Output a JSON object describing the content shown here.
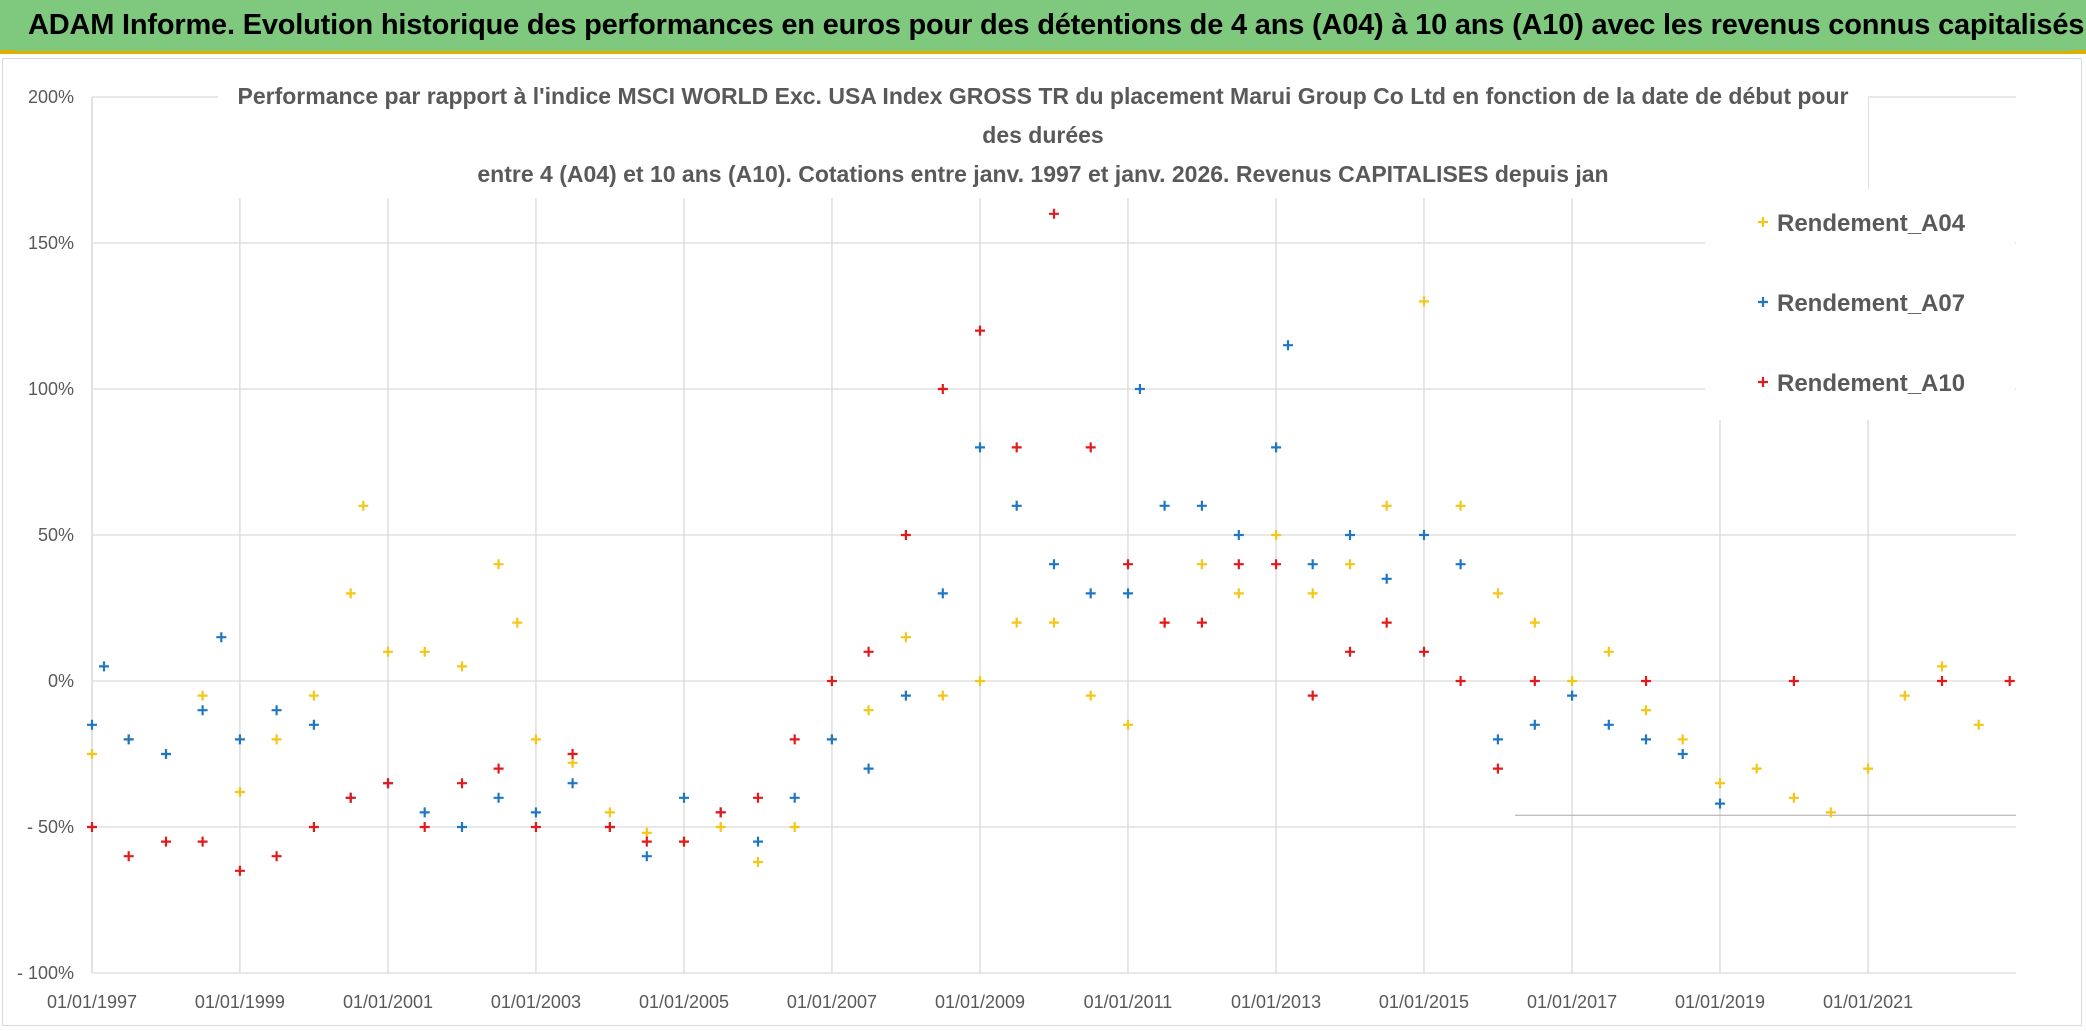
{
  "banner": {
    "title": "ADAM Informe. Evolution historique des performances en euros pour des détentions de 4 ans (A04) à 10 ans (A10) avec les revenus connus capitalisés"
  },
  "chart_data": {
    "type": "scatter",
    "title_lines": [
      "Performance par rapport à l'indice MSCI WORLD Exc. USA Index GROSS TR  du placement Marui Group Co Ltd en fonction de la date de début pour",
      "des durées",
      "entre 4 (A04) et 10 ans (A10). Cotations entre janv. 1997 et janv. 2026. Revenus CAPITALISES depuis jan"
    ],
    "x_axis": {
      "type": "date",
      "range": [
        "1997-01-01",
        "2023-01-01"
      ],
      "tick_labels": [
        "01/01/1997",
        "01/01/1999",
        "01/01/2001",
        "01/01/2003",
        "01/01/2005",
        "01/01/2007",
        "01/01/2009",
        "01/01/2011",
        "01/01/2013",
        "01/01/2015",
        "01/01/2017",
        "01/01/2019",
        "01/01/2021"
      ]
    },
    "y_axis": {
      "range": [
        -100,
        200
      ],
      "unit": "%",
      "tick_values": [
        200,
        150,
        100,
        50,
        0,
        -50,
        -100
      ],
      "tick_labels": [
        "200%",
        "150%",
        "100%",
        "50%",
        "0%",
        "- 50%",
        "- 100%"
      ]
    },
    "grid": true,
    "legend_position": "top-right",
    "marker": "plus",
    "series": [
      {
        "name": "Rendement_A04",
        "color": "#f5c518",
        "points": [
          [
            "1997-01-01",
            -25
          ],
          [
            "1997-07-01",
            -20
          ],
          [
            "1998-01-01",
            -25
          ],
          [
            "1998-07-01",
            -5
          ],
          [
            "1999-01-01",
            -38
          ],
          [
            "1999-07-01",
            -20
          ],
          [
            "2000-01-01",
            -5
          ],
          [
            "2000-07-01",
            30
          ],
          [
            "2000-09-01",
            60
          ],
          [
            "2001-01-01",
            10
          ],
          [
            "2001-07-01",
            10
          ],
          [
            "2002-01-01",
            5
          ],
          [
            "2002-07-01",
            40
          ],
          [
            "2002-10-01",
            20
          ],
          [
            "2003-01-01",
            -20
          ],
          [
            "2003-07-01",
            -28
          ],
          [
            "2004-01-01",
            -45
          ],
          [
            "2004-07-01",
            -52
          ],
          [
            "2005-01-01",
            -55
          ],
          [
            "2005-07-01",
            -50
          ],
          [
            "2006-01-01",
            -62
          ],
          [
            "2006-07-01",
            -50
          ],
          [
            "2007-01-01",
            -20
          ],
          [
            "2007-07-01",
            -10
          ],
          [
            "2008-01-01",
            15
          ],
          [
            "2008-07-01",
            -5
          ],
          [
            "2009-01-01",
            0
          ],
          [
            "2009-07-01",
            20
          ],
          [
            "2010-01-01",
            20
          ],
          [
            "2010-07-01",
            -5
          ],
          [
            "2011-01-01",
            -15
          ],
          [
            "2011-07-01",
            20
          ],
          [
            "2012-01-01",
            40
          ],
          [
            "2012-07-01",
            30
          ],
          [
            "2013-01-01",
            50
          ],
          [
            "2013-07-01",
            30
          ],
          [
            "2014-01-01",
            40
          ],
          [
            "2014-07-01",
            60
          ],
          [
            "2015-01-01",
            130
          ],
          [
            "2015-07-01",
            60
          ],
          [
            "2016-01-01",
            30
          ],
          [
            "2016-07-01",
            20
          ],
          [
            "2017-01-01",
            0
          ],
          [
            "2017-07-01",
            10
          ],
          [
            "2018-01-01",
            -10
          ],
          [
            "2018-07-01",
            -20
          ],
          [
            "2019-01-01",
            -35
          ],
          [
            "2019-07-01",
            -30
          ],
          [
            "2020-01-01",
            -40
          ],
          [
            "2020-07-01",
            -45
          ],
          [
            "2021-01-01",
            -30
          ],
          [
            "2021-07-01",
            -5
          ],
          [
            "2022-01-01",
            5
          ],
          [
            "2022-07-01",
            -15
          ]
        ]
      },
      {
        "name": "Rendement_A07",
        "color": "#1f77c4",
        "points": [
          [
            "1997-01-01",
            -15
          ],
          [
            "1997-03-01",
            5
          ],
          [
            "1997-07-01",
            -20
          ],
          [
            "1998-01-01",
            -25
          ],
          [
            "1998-07-01",
            -10
          ],
          [
            "1998-10-01",
            15
          ],
          [
            "1999-01-01",
            -20
          ],
          [
            "1999-07-01",
            -10
          ],
          [
            "2000-01-01",
            -15
          ],
          [
            "2000-07-01",
            -40
          ],
          [
            "2001-01-01",
            -35
          ],
          [
            "2001-07-01",
            -45
          ],
          [
            "2002-01-01",
            -50
          ],
          [
            "2002-07-01",
            -40
          ],
          [
            "2003-01-01",
            -45
          ],
          [
            "2003-07-01",
            -35
          ],
          [
            "2004-01-01",
            -50
          ],
          [
            "2004-07-01",
            -60
          ],
          [
            "2005-01-01",
            -40
          ],
          [
            "2005-07-01",
            -45
          ],
          [
            "2006-01-01",
            -55
          ],
          [
            "2006-07-01",
            -40
          ],
          [
            "2007-01-01",
            -20
          ],
          [
            "2007-07-01",
            -30
          ],
          [
            "2008-01-01",
            -5
          ],
          [
            "2008-07-01",
            30
          ],
          [
            "2009-01-01",
            80
          ],
          [
            "2009-07-01",
            60
          ],
          [
            "2010-01-01",
            40
          ],
          [
            "2010-07-01",
            30
          ],
          [
            "2011-01-01",
            30
          ],
          [
            "2011-03-01",
            100
          ],
          [
            "2011-07-01",
            60
          ],
          [
            "2012-01-01",
            60
          ],
          [
            "2012-07-01",
            50
          ],
          [
            "2013-01-01",
            80
          ],
          [
            "2013-03-01",
            115
          ],
          [
            "2013-07-01",
            40
          ],
          [
            "2014-01-01",
            50
          ],
          [
            "2014-07-01",
            35
          ],
          [
            "2015-01-01",
            50
          ],
          [
            "2015-07-01",
            40
          ],
          [
            "2016-01-01",
            -20
          ],
          [
            "2016-07-01",
            -15
          ],
          [
            "2017-01-01",
            -5
          ],
          [
            "2017-07-01",
            -15
          ],
          [
            "2018-01-01",
            -20
          ],
          [
            "2018-07-01",
            -25
          ],
          [
            "2019-01-01",
            -42
          ]
        ]
      },
      {
        "name": "Rendement_A10",
        "color": "#e31a1c",
        "points": [
          [
            "1997-01-01",
            -50
          ],
          [
            "1997-07-01",
            -60
          ],
          [
            "1998-01-01",
            -55
          ],
          [
            "1998-07-01",
            -55
          ],
          [
            "1999-01-01",
            -65
          ],
          [
            "1999-07-01",
            -60
          ],
          [
            "2000-01-01",
            -50
          ],
          [
            "2000-07-01",
            -40
          ],
          [
            "2001-01-01",
            -35
          ],
          [
            "2001-07-01",
            -50
          ],
          [
            "2002-01-01",
            -35
          ],
          [
            "2002-07-01",
            -30
          ],
          [
            "2003-01-01",
            -50
          ],
          [
            "2003-07-01",
            -25
          ],
          [
            "2004-01-01",
            -50
          ],
          [
            "2004-07-01",
            -55
          ],
          [
            "2005-01-01",
            -55
          ],
          [
            "2005-07-01",
            -45
          ],
          [
            "2006-01-01",
            -40
          ],
          [
            "2006-07-01",
            -20
          ],
          [
            "2007-01-01",
            0
          ],
          [
            "2007-07-01",
            10
          ],
          [
            "2008-01-01",
            50
          ],
          [
            "2008-07-01",
            100
          ],
          [
            "2009-01-01",
            120
          ],
          [
            "2009-07-01",
            80
          ],
          [
            "2010-01-01",
            160
          ],
          [
            "2010-07-01",
            80
          ],
          [
            "2011-01-01",
            40
          ],
          [
            "2011-07-01",
            20
          ],
          [
            "2012-01-01",
            20
          ],
          [
            "2012-07-01",
            40
          ],
          [
            "2013-01-01",
            40
          ],
          [
            "2013-07-01",
            -5
          ],
          [
            "2014-01-01",
            10
          ],
          [
            "2014-07-01",
            20
          ],
          [
            "2015-01-01",
            10
          ],
          [
            "2015-07-01",
            0
          ],
          [
            "2016-01-01",
            -30
          ],
          [
            "2016-07-01",
            0
          ],
          [
            "2018-01-01",
            0
          ],
          [
            "2020-01-01",
            0
          ],
          [
            "2022-01-01",
            0
          ],
          [
            "2022-12-01",
            0
          ]
        ]
      }
    ]
  }
}
